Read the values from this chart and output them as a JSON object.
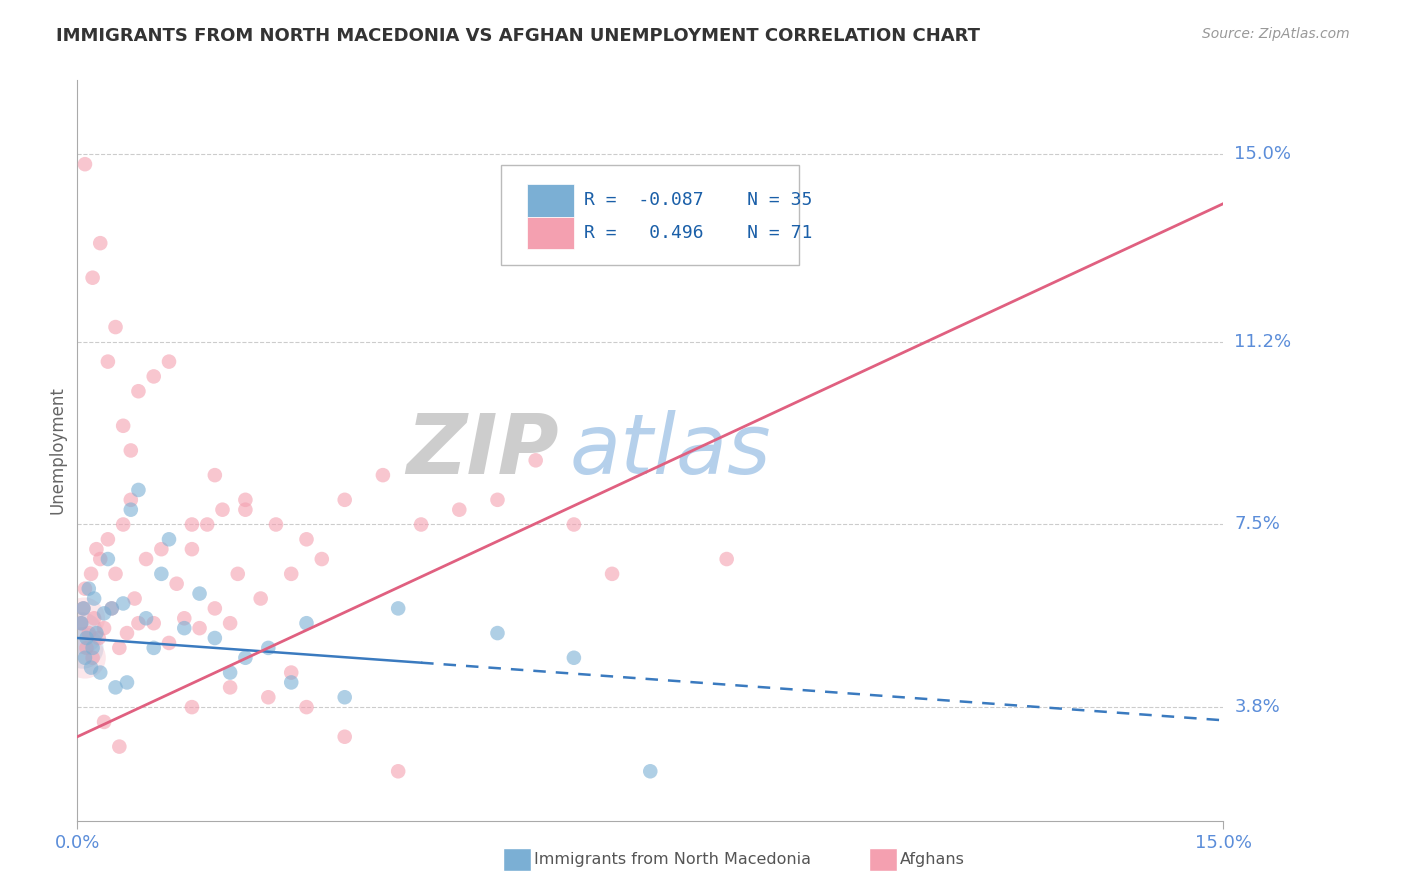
{
  "title": "IMMIGRANTS FROM NORTH MACEDONIA VS AFGHAN UNEMPLOYMENT CORRELATION CHART",
  "source": "Source: ZipAtlas.com",
  "ylabel": "Unemployment",
  "yticks": [
    3.8,
    7.5,
    11.2,
    15.0
  ],
  "ytick_labels": [
    "3.8%",
    "7.5%",
    "11.2%",
    "15.0%"
  ],
  "xmin": 0.0,
  "xmax": 15.0,
  "ymin": 1.5,
  "ymax": 16.5,
  "blue_R": -0.087,
  "blue_N": 35,
  "pink_R": 0.496,
  "pink_N": 71,
  "blue_color": "#7bafd4",
  "pink_color": "#f4a0b0",
  "blue_line_color": "#3a7abf",
  "pink_line_color": "#e06080",
  "blue_label": "Immigrants from North Macedonia",
  "pink_label": "Afghans",
  "legend_R_color": "#1a5fa8",
  "watermark_zip_color": "#c8c8c8",
  "watermark_atlas_color": "#a8c8e8",
  "title_color": "#333333",
  "axis_label_color": "#5b8dd9",
  "grid_color": "#cccccc",
  "blue_line_x0": 0.0,
  "blue_line_y0": 5.2,
  "blue_line_x1": 9.0,
  "blue_line_y1": 4.2,
  "blue_line_solid_end": 4.5,
  "pink_line_x0": 0.0,
  "pink_line_y0": 3.2,
  "pink_line_x1": 15.0,
  "pink_line_y1": 14.0,
  "blue_scatter_x": [
    0.05,
    0.08,
    0.1,
    0.15,
    0.2,
    0.25,
    0.3,
    0.35,
    0.4,
    0.5,
    0.6,
    0.7,
    0.8,
    0.9,
    1.0,
    1.1,
    1.2,
    1.4,
    1.6,
    1.8,
    2.0,
    2.2,
    2.5,
    2.8,
    3.0,
    3.5,
    4.2,
    5.5,
    7.5,
    0.12,
    0.18,
    0.22,
    0.45,
    0.65,
    6.5
  ],
  "blue_scatter_y": [
    5.5,
    5.8,
    4.8,
    6.2,
    5.0,
    5.3,
    4.5,
    5.7,
    6.8,
    4.2,
    5.9,
    7.8,
    8.2,
    5.6,
    5.0,
    6.5,
    7.2,
    5.4,
    6.1,
    5.2,
    4.5,
    4.8,
    5.0,
    4.3,
    5.5,
    4.0,
    5.8,
    5.3,
    2.5,
    5.2,
    4.6,
    6.0,
    5.8,
    4.3,
    4.8
  ],
  "pink_scatter_x": [
    0.05,
    0.08,
    0.1,
    0.12,
    0.15,
    0.18,
    0.2,
    0.22,
    0.25,
    0.28,
    0.3,
    0.35,
    0.4,
    0.45,
    0.5,
    0.55,
    0.6,
    0.65,
    0.7,
    0.75,
    0.8,
    0.9,
    1.0,
    1.1,
    1.2,
    1.3,
    1.4,
    1.5,
    1.6,
    1.7,
    1.8,
    1.9,
    2.0,
    2.1,
    2.2,
    2.4,
    2.6,
    2.8,
    3.0,
    3.2,
    3.5,
    4.0,
    4.5,
    5.0,
    5.5,
    6.0,
    6.5,
    7.0,
    8.5,
    0.1,
    0.2,
    0.3,
    0.4,
    0.5,
    0.6,
    0.7,
    0.8,
    1.0,
    1.2,
    1.5,
    1.8,
    2.2,
    2.8,
    3.5,
    4.2,
    2.0,
    2.5,
    3.0,
    0.35,
    0.55,
    1.5
  ],
  "pink_scatter_y": [
    5.5,
    5.8,
    6.2,
    5.0,
    5.3,
    6.5,
    4.8,
    5.6,
    7.0,
    5.2,
    6.8,
    5.4,
    7.2,
    5.8,
    6.5,
    5.0,
    7.5,
    5.3,
    8.0,
    6.0,
    5.5,
    6.8,
    5.5,
    7.0,
    5.1,
    6.3,
    5.6,
    7.0,
    5.4,
    7.5,
    5.8,
    7.8,
    5.5,
    6.5,
    7.8,
    6.0,
    7.5,
    6.5,
    7.2,
    6.8,
    8.0,
    8.5,
    7.5,
    7.8,
    8.0,
    8.8,
    7.5,
    6.5,
    6.8,
    14.8,
    12.5,
    13.2,
    10.8,
    11.5,
    9.5,
    9.0,
    10.2,
    10.5,
    10.8,
    7.5,
    8.5,
    8.0,
    4.5,
    3.2,
    2.5,
    4.2,
    4.0,
    3.8,
    3.5,
    3.0,
    3.8
  ]
}
